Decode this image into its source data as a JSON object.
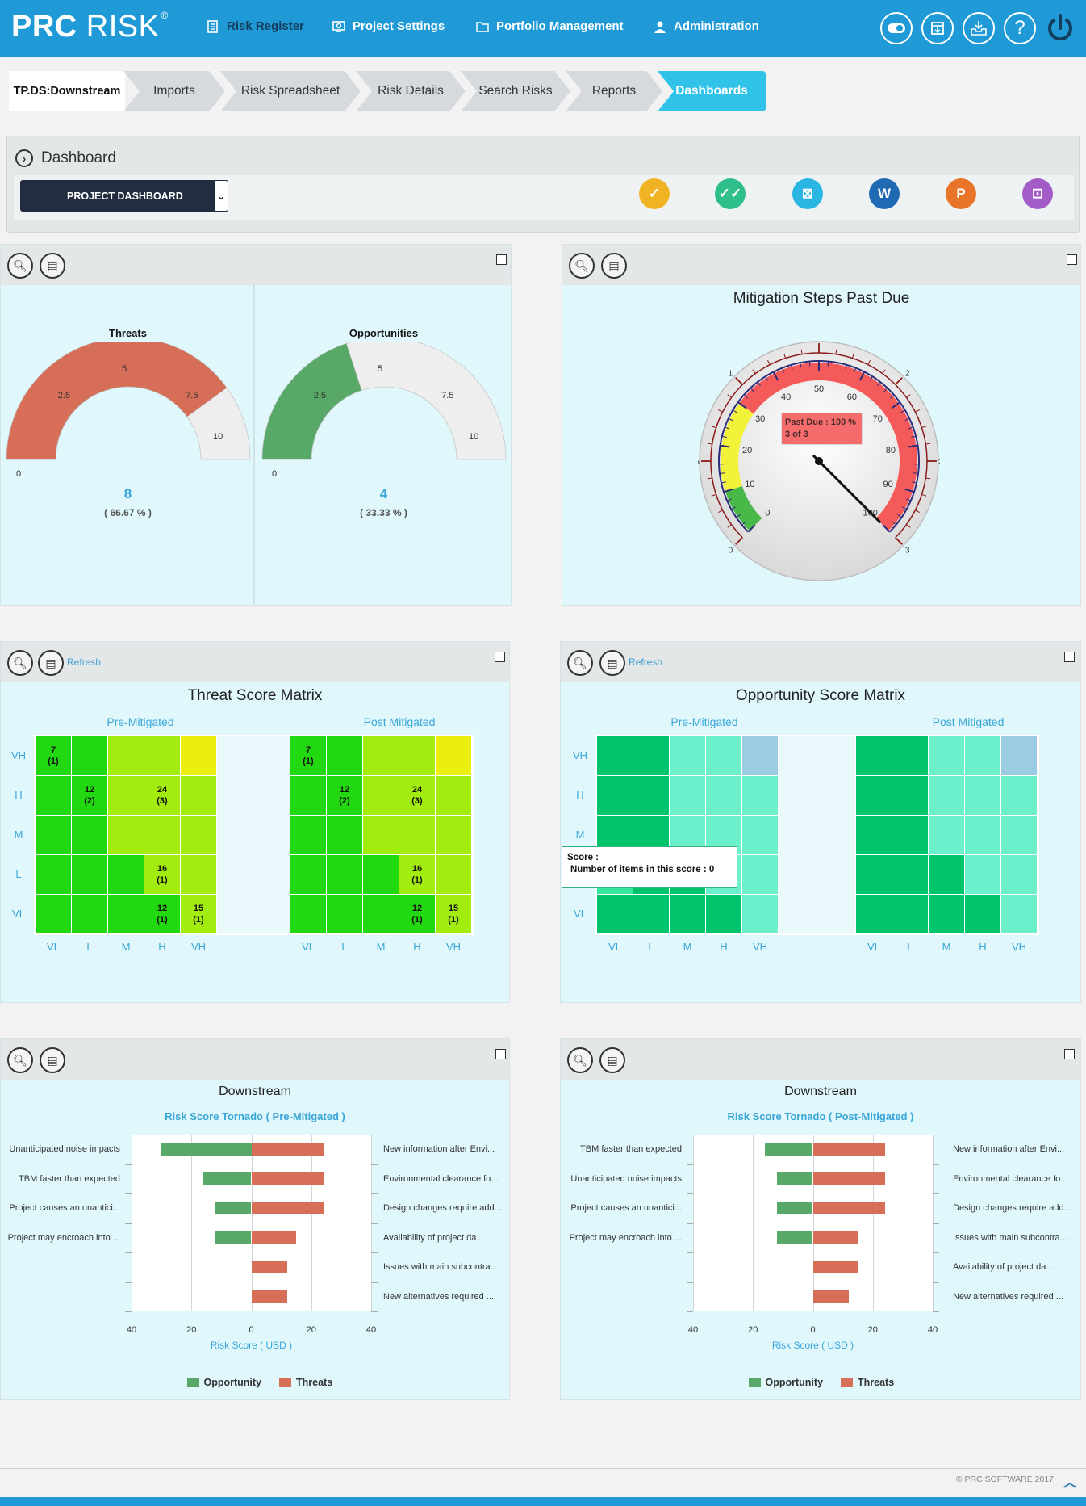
{
  "app": {
    "logo_bold": "PRC",
    "logo_rest": " RISK",
    "logo_reg": "®"
  },
  "nav": [
    {
      "label": "Risk Register",
      "icon": "register-icon"
    },
    {
      "label": "Project Settings",
      "icon": "settings-icon"
    },
    {
      "label": "Portfolio Management",
      "icon": "folder-icon"
    },
    {
      "label": "Administration",
      "icon": "user-icon"
    }
  ],
  "toolbar_icons": [
    "toggle-icon",
    "archive-icon",
    "inbox-download-icon",
    "help-icon",
    "power-icon"
  ],
  "breadcrumb": [
    "TP.DS:Downstream",
    "Imports",
    "Risk Spreadsheet",
    "Risk Details",
    "Search Risks",
    "Reports",
    "Dashboards"
  ],
  "dashboard": {
    "title": "Dashboard",
    "select": "PROJECT DASHBOARD"
  },
  "actions": [
    {
      "name": "approve-icon",
      "color": "#f0b323",
      "glyph": "✓"
    },
    {
      "name": "double-check-icon",
      "color": "#2fbf8a",
      "glyph": "✓✓"
    },
    {
      "name": "excel-icon",
      "color": "#29b6e3",
      "glyph": "⊠"
    },
    {
      "name": "word-icon",
      "color": "#1f6ab3",
      "glyph": "W"
    },
    {
      "name": "powerpoint-icon",
      "color": "#e8742a",
      "glyph": "P"
    },
    {
      "name": "presentation-icon",
      "color": "#a35bc7",
      "glyph": "⊡"
    }
  ],
  "gauges": {
    "threats": {
      "title": "Threats",
      "value": "8",
      "pct": "( 66.67 % )",
      "fraction": 0.8,
      "ticks": [
        "0",
        "2.5",
        "5",
        "7.5",
        "10"
      ],
      "color": "#d66e58"
    },
    "opps": {
      "title": "Opportunities",
      "value": "4",
      "pct": "( 33.33 % )",
      "fraction": 0.4,
      "ticks": [
        "0",
        "2.5",
        "5",
        "7.5",
        "10"
      ],
      "color": "#58a968"
    }
  },
  "mitigation": {
    "title": "Mitigation Steps Past Due",
    "tooltip_line1": "Past Due : 100 %",
    "tooltip_line2": "3 of 3",
    "value_percent": 100,
    "inner_ticks": [
      "0",
      "10",
      "20",
      "30",
      "40",
      "50",
      "60",
      "70",
      "80",
      "90",
      "100"
    ],
    "outer_ticks": [
      "0",
      "0.5",
      "1",
      "1.5",
      "2",
      "2.5",
      "3"
    ]
  },
  "refresh_label": "Refresh",
  "threat_matrix": {
    "title": "Threat Score Matrix",
    "pre": "Pre-Mitigated",
    "post": "Post Mitigated",
    "rows": [
      "VH",
      "H",
      "M",
      "L",
      "VL"
    ],
    "cols": [
      "VL",
      "L",
      "M",
      "H",
      "VH"
    ],
    "pre_colors": [
      [
        "#21d811",
        "#21d811",
        "#a3ec10",
        "#a3ec10",
        "#ecee10"
      ],
      [
        "#21d811",
        "#21d811",
        "#a3ec10",
        "#a3ec10",
        "#a3ec10"
      ],
      [
        "#21d811",
        "#21d811",
        "#a3ec10",
        "#a3ec10",
        "#a3ec10"
      ],
      [
        "#21d811",
        "#21d811",
        "#21d811",
        "#a3ec10",
        "#a3ec10"
      ],
      [
        "#21d811",
        "#21d811",
        "#21d811",
        "#21d811",
        "#a3ec10"
      ]
    ],
    "pre_cells": [
      [
        "7",
        "(1)",
        "",
        "",
        "",
        "",
        "",
        "",
        "",
        ""
      ],
      [
        "",
        "",
        "12",
        "(2)",
        "",
        "",
        "24",
        "(3)",
        "",
        ""
      ],
      [
        "",
        "",
        "",
        "",
        "",
        "",
        "",
        "",
        "",
        ""
      ],
      [
        "",
        "",
        "",
        "",
        "",
        "",
        "16",
        "(1)",
        "",
        ""
      ],
      [
        "",
        "",
        "",
        "",
        "",
        "",
        "12",
        "(1)",
        "15",
        "(1)"
      ]
    ],
    "post_colors": [
      [
        "#21d811",
        "#21d811",
        "#a3ec10",
        "#a3ec10",
        "#ecee10"
      ],
      [
        "#21d811",
        "#21d811",
        "#a3ec10",
        "#a3ec10",
        "#a3ec10"
      ],
      [
        "#21d811",
        "#21d811",
        "#a3ec10",
        "#a3ec10",
        "#a3ec10"
      ],
      [
        "#21d811",
        "#21d811",
        "#21d811",
        "#a3ec10",
        "#a3ec10"
      ],
      [
        "#21d811",
        "#21d811",
        "#21d811",
        "#21d811",
        "#a3ec10"
      ]
    ],
    "post_cells": [
      [
        "7",
        "(1)",
        "",
        "",
        "",
        "",
        "",
        "",
        "",
        ""
      ],
      [
        "",
        "",
        "12",
        "(2)",
        "",
        "",
        "24",
        "(3)",
        "",
        ""
      ],
      [
        "",
        "",
        "",
        "",
        "",
        "",
        "",
        "",
        "",
        ""
      ],
      [
        "",
        "",
        "",
        "",
        "",
        "",
        "16",
        "(1)",
        "",
        ""
      ],
      [
        "",
        "",
        "",
        "",
        "",
        "",
        "12",
        "(1)",
        "15",
        "(1)"
      ]
    ]
  },
  "opp_matrix": {
    "title": "Opportunity Score Matrix",
    "pre": "Pre-Mitigated",
    "post": "Post Mitigated",
    "rows": [
      "VH",
      "H",
      "M",
      "L",
      "VL"
    ],
    "cols": [
      "VL",
      "L",
      "M",
      "H",
      "VH"
    ],
    "pre_colors": [
      [
        "#00c46c",
        "#00c46c",
        "#6cf0cc",
        "#6cf0cc",
        "#9ccbe4"
      ],
      [
        "#00c46c",
        "#00c46c",
        "#6cf0cc",
        "#6cf0cc",
        "#6cf0cc"
      ],
      [
        "#00c46c",
        "#00c46c",
        "#6cf0cc",
        "#6cf0cc",
        "#6cf0cc"
      ],
      [
        "#33e89a",
        "#00c46c",
        "#00c46c",
        "#6cf0cc",
        "#6cf0cc"
      ],
      [
        "#00c46c",
        "#00c46c",
        "#00c46c",
        "#00c46c",
        "#6cf0cc"
      ]
    ],
    "post_colors": [
      [
        "#00c46c",
        "#00c46c",
        "#6cf0cc",
        "#6cf0cc",
        "#9ccbe4"
      ],
      [
        "#00c46c",
        "#00c46c",
        "#6cf0cc",
        "#6cf0cc",
        "#6cf0cc"
      ],
      [
        "#00c46c",
        "#00c46c",
        "#6cf0cc",
        "#6cf0cc",
        "#6cf0cc"
      ],
      [
        "#00c46c",
        "#00c46c",
        "#00c46c",
        "#6cf0cc",
        "#6cf0cc"
      ],
      [
        "#00c46c",
        "#00c46c",
        "#00c46c",
        "#00c46c",
        "#6cf0cc"
      ]
    ],
    "tooltip_line1": "Score :",
    "tooltip_line2": "Number of items in this score : 0"
  },
  "tornado_pre": {
    "title": "Downstream",
    "subtitle": "Risk Score Tornado ( Pre-Mitigated )",
    "left_labels": [
      "Unanticipated noise impacts",
      "TBM faster than expected",
      "Project causes an unantici...",
      "Project may encroach into ..."
    ],
    "right_labels": [
      "New information after Envi...",
      "Environmental clearance fo...",
      "Design changes require add...",
      "Availability of project da...",
      "Issues with main subcontra...",
      "New alternatives required ..."
    ],
    "opportunity": [
      30,
      16,
      12,
      12,
      0,
      0
    ],
    "threats": [
      24,
      24,
      24,
      15,
      12,
      12
    ],
    "axis_ticks": [
      "40",
      "20",
      "0",
      "20",
      "40"
    ],
    "xlabel": "Risk Score ( USD )",
    "legend_opp": "Opportunity",
    "legend_thr": "Threats"
  },
  "tornado_post": {
    "title": "Downstream",
    "subtitle": "Risk Score Tornado ( Post-Mitigated )",
    "left_labels": [
      "TBM faster than expected",
      "Unanticipated noise impacts",
      "Project causes an unantici...",
      "Project may encroach into ..."
    ],
    "right_labels": [
      "New information after Envi...",
      "Environmental clearance fo...",
      "Design changes require add...",
      "Issues with main subcontra...",
      "Availability of project da...",
      "New alternatives required ..."
    ],
    "opportunity": [
      16,
      12,
      12,
      12,
      0,
      0
    ],
    "threats": [
      24,
      24,
      24,
      15,
      15,
      12
    ],
    "axis_ticks": [
      "40",
      "20",
      "0",
      "20",
      "40"
    ],
    "xlabel": "Risk Score ( USD )",
    "legend_opp": "Opportunity",
    "legend_thr": "Threats"
  },
  "footer": {
    "copyright": "© PRC SOFTWARE 2017"
  },
  "colors": {
    "opportunity": "#58a968",
    "threats": "#d66e58",
    "accent": "#1f9ad6"
  }
}
